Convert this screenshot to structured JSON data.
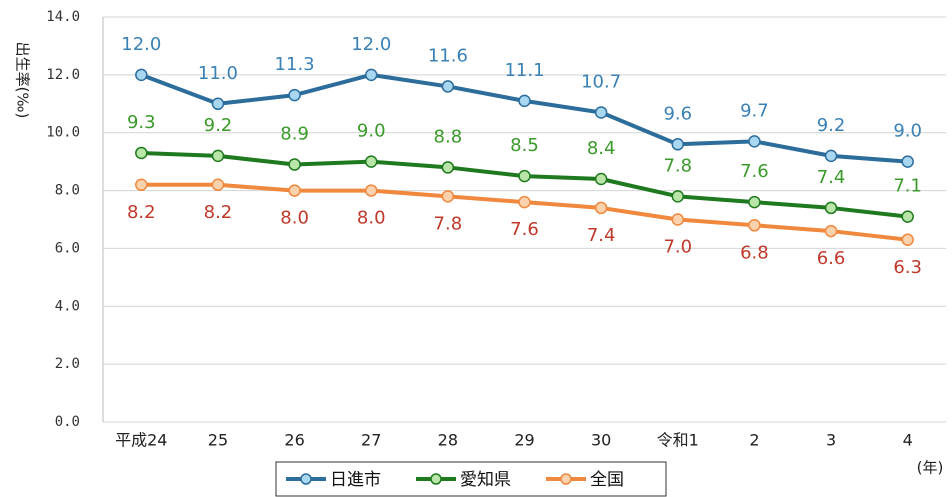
{
  "chart_data": {
    "type": "line",
    "y_label": "出生率(‰)",
    "x_label": "(年)",
    "categories": [
      "平成24",
      "25",
      "26",
      "27",
      "28",
      "29",
      "30",
      "令和1",
      "2",
      "3",
      "4"
    ],
    "series": [
      {
        "name": "日進市",
        "color": "#2c6d9c",
        "marker_color": "#a9d6f0",
        "label_color": "#3a82b6",
        "label_position": "above",
        "values": [
          12.0,
          11.0,
          11.3,
          12.0,
          11.6,
          11.1,
          10.7,
          9.6,
          9.7,
          9.2,
          9.0
        ],
        "value_labels": [
          "12.0",
          "11.0",
          "11.3",
          "12.0",
          "11.6",
          "11.1",
          "10.7",
          "9.6",
          "9.7",
          "9.2",
          "9.0"
        ]
      },
      {
        "name": "愛知県",
        "color": "#1f7a1f",
        "marker_color": "#b9e6a8",
        "label_color": "#3a9a2a",
        "label_position": "above",
        "values": [
          9.3,
          9.2,
          8.9,
          9.0,
          8.8,
          8.5,
          8.4,
          7.8,
          7.6,
          7.4,
          7.1
        ],
        "value_labels": [
          "9.3",
          "9.2",
          "8.9",
          "9.0",
          "8.8",
          "8.5",
          "8.4",
          "7.8",
          "7.6",
          "7.4",
          "7.1"
        ]
      },
      {
        "name": "全国",
        "color": "#f0883e",
        "marker_color": "#fbd2ae",
        "label_color": "#c0392b",
        "label_position": "below",
        "values": [
          8.2,
          8.2,
          8.0,
          8.0,
          7.8,
          7.6,
          7.4,
          7.0,
          6.8,
          6.6,
          6.3
        ],
        "value_labels": [
          "8.2",
          "8.2",
          "8.0",
          "8.0",
          "7.8",
          "7.6",
          "7.4",
          "7.0",
          "6.8",
          "6.6",
          "6.3"
        ]
      }
    ],
    "ylim": [
      0,
      14
    ],
    "yticks": [
      {
        "value": 0,
        "label": "0.0"
      },
      {
        "value": 2,
        "label": "2.0"
      },
      {
        "value": 4,
        "label": "4.0"
      },
      {
        "value": 6,
        "label": "6.0"
      },
      {
        "value": 8,
        "label": "8.0"
      },
      {
        "value": 10,
        "label": "10.0"
      },
      {
        "value": 12,
        "label": "12.0"
      },
      {
        "value": 14,
        "label": "14.0"
      }
    ],
    "grid": true,
    "legend": "bottom"
  }
}
